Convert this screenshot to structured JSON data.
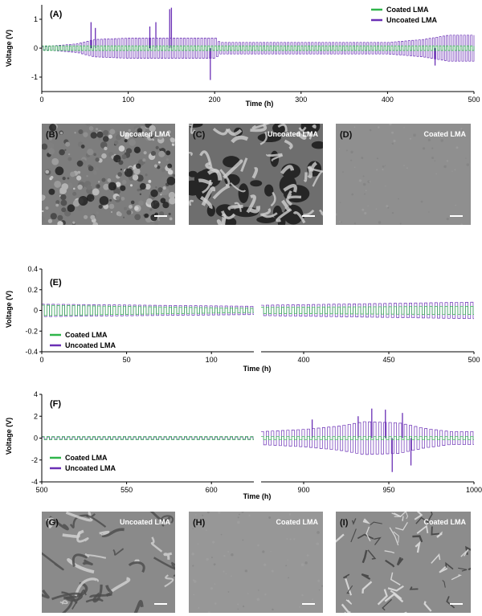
{
  "colors": {
    "coated": "#2fb54a",
    "uncoated": "#6a2fb5"
  },
  "charts": {
    "A": {
      "tag": "(A)",
      "ylabel": "Voltage (V)",
      "xlabel": "Time (h)",
      "legend_coated": "Coated LMA",
      "legend_uncoated": "Uncoated LMA"
    },
    "E": {
      "tag": "(E)",
      "ylabel": "Voltage (V)",
      "xlabel": "Time (h)",
      "legend_coated": "Coated LMA",
      "legend_uncoated": "Uncoated LMA"
    },
    "F": {
      "tag": "(F)",
      "ylabel": "Voltage (V)",
      "xlabel": "Time (h)",
      "legend_coated": "Coated LMA",
      "legend_uncoated": "Uncoated LMA"
    }
  },
  "micrographs": [
    {
      "tag": "(B)",
      "title": "Uncoated LMA",
      "texture": "dense-granular"
    },
    {
      "tag": "(C)",
      "title": "Uncoated LMA",
      "texture": "porous-dendritic"
    },
    {
      "tag": "(D)",
      "title": "Coated LMA",
      "texture": "smooth"
    },
    {
      "tag": "(G)",
      "title": "Uncoated LMA",
      "texture": "wrinkled"
    },
    {
      "tag": "(H)",
      "title": "Coated LMA",
      "texture": "fine-smooth"
    },
    {
      "tag": "(I)",
      "title": "Coated LMA",
      "texture": "faceted"
    }
  ],
  "chart_data": [
    {
      "panel": "A",
      "type": "line",
      "title": "",
      "xlabel": "Time (h)",
      "ylabel": "Voltage (V)",
      "xlim": [
        0,
        500
      ],
      "ylim": [
        -1.5,
        1.5
      ],
      "xticks": [
        0,
        100,
        200,
        300,
        400,
        500
      ],
      "yticks": [
        -1,
        0,
        1
      ],
      "legend": "top-right",
      "series": [
        {
          "name": "Coated LMA",
          "amplitude_profile": [
            [
              0,
              0.08
            ],
            [
              500,
              0.08
            ]
          ]
        },
        {
          "name": "Uncoated LMA",
          "amplitude_profile": [
            [
              0,
              0.05
            ],
            [
              40,
              0.15
            ],
            [
              60,
              0.3
            ],
            [
              100,
              0.35
            ],
            [
              200,
              0.35
            ],
            [
              205,
              0.2
            ],
            [
              400,
              0.2
            ],
            [
              440,
              0.3
            ],
            [
              470,
              0.45
            ],
            [
              500,
              0.45
            ]
          ],
          "spikes": [
            [
              57,
              0.9
            ],
            [
              62,
              0.7
            ],
            [
              125,
              0.75
            ],
            [
              132,
              0.9
            ],
            [
              148,
              1.35
            ],
            [
              150,
              1.4
            ],
            [
              195,
              -1.1
            ],
            [
              455,
              -0.6
            ]
          ]
        }
      ]
    },
    {
      "panel": "E",
      "type": "line",
      "title": "",
      "xlabel": "Time (h)",
      "ylabel": "Voltage (V)",
      "broken_axis": true,
      "segments": [
        {
          "xlim": [
            0,
            125
          ],
          "xticks": [
            0,
            50,
            100
          ]
        },
        {
          "xlim": [
            375,
            500
          ],
          "xticks": [
            400,
            450,
            500
          ]
        }
      ],
      "ylim": [
        -0.4,
        0.4
      ],
      "yticks": [
        -0.4,
        -0.2,
        0.0,
        0.2,
        0.4
      ],
      "legend": "bottom-left",
      "series": [
        {
          "name": "Coated LMA",
          "amplitude_profile": [
            [
              0,
              0.05
            ],
            [
              125,
              0.02
            ],
            [
              375,
              0.03
            ],
            [
              500,
              0.04
            ]
          ]
        },
        {
          "name": "Uncoated LMA",
          "amplitude_profile": [
            [
              0,
              0.06
            ],
            [
              125,
              0.04
            ],
            [
              375,
              0.05
            ],
            [
              500,
              0.08
            ]
          ]
        }
      ]
    },
    {
      "panel": "F",
      "type": "line",
      "title": "",
      "xlabel": "Time (h)",
      "ylabel": "Voltage (V)",
      "broken_axis": true,
      "segments": [
        {
          "xlim": [
            500,
            625
          ],
          "xticks": [
            500,
            550,
            600
          ]
        },
        {
          "xlim": [
            875,
            1000
          ],
          "xticks": [
            900,
            950,
            1000
          ]
        }
      ],
      "ylim": [
        -4,
        4
      ],
      "yticks": [
        -4,
        -2,
        0,
        2,
        4
      ],
      "legend": "bottom-left",
      "series": [
        {
          "name": "Coated LMA",
          "amplitude_profile": [
            [
              500,
              0.15
            ],
            [
              625,
              0.15
            ],
            [
              875,
              0.15
            ],
            [
              1000,
              0.15
            ]
          ]
        },
        {
          "name": "Uncoated LMA",
          "amplitude_profile": [
            [
              500,
              0.1
            ],
            [
              625,
              0.1
            ],
            [
              875,
              0.6
            ],
            [
              900,
              0.8
            ],
            [
              920,
              1.1
            ],
            [
              935,
              1.5
            ],
            [
              955,
              1.4
            ],
            [
              970,
              0.9
            ],
            [
              985,
              0.6
            ],
            [
              1000,
              0.6
            ]
          ],
          "spikes": [
            [
              905,
              1.7
            ],
            [
              932,
              2.0
            ],
            [
              940,
              2.7
            ],
            [
              948,
              2.6
            ],
            [
              952,
              -3.1
            ],
            [
              958,
              2.3
            ],
            [
              963,
              -2.5
            ]
          ]
        }
      ]
    }
  ]
}
